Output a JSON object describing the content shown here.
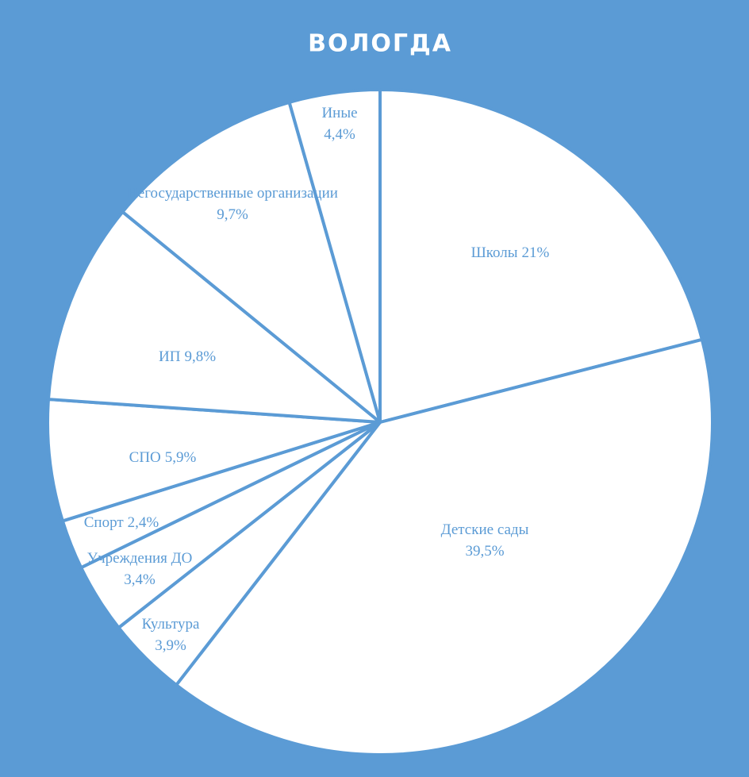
{
  "chart_data": {
    "type": "pie",
    "title": "ВОЛОГДА",
    "categories": [
      "Школы",
      "Детские сады",
      "Культура",
      "Учреждения ДО",
      "Спорт",
      "СПО",
      "ИП",
      "Негосударственные организации",
      "Иные"
    ],
    "values": [
      21,
      39.5,
      3.9,
      3.4,
      2.4,
      5.9,
      9.8,
      9.7,
      4.4
    ],
    "value_labels": [
      "21%",
      "39,5%",
      "3,9%",
      "3,4%",
      "2,4%",
      "5,9%",
      "9,8%",
      "9,7%",
      "4,4%"
    ],
    "colors": [
      "#ffffff",
      "#ffffff",
      "#ffffff",
      "#ffffff",
      "#ffffff",
      "#ffffff",
      "#ffffff",
      "#ffffff",
      "#ffffff"
    ]
  }
}
